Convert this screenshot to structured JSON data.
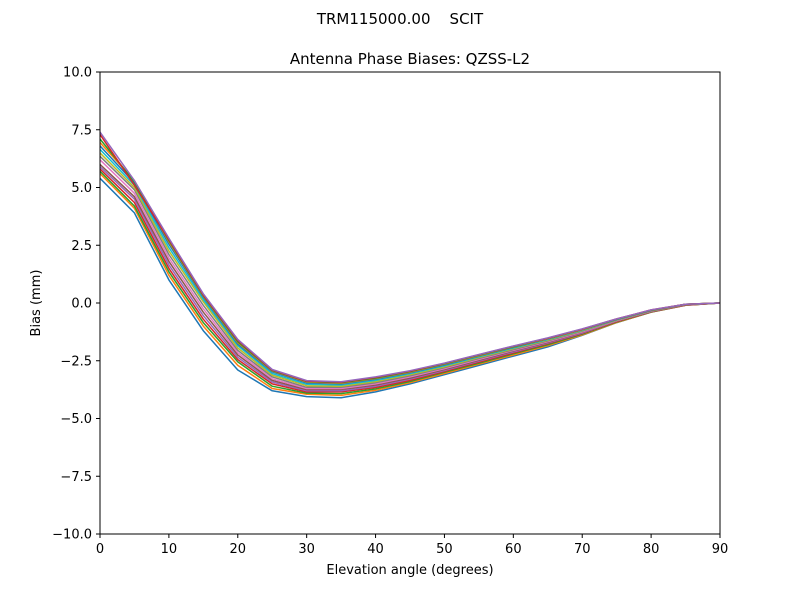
{
  "figure": {
    "suptitle": "TRM115000.00    SCIT"
  },
  "chart_data": {
    "type": "line",
    "title": "Antenna Phase Biases: QZSS-L2",
    "xlabel": "Elevation angle (degrees)",
    "ylabel": "Bias (mm)",
    "xlim": [
      0,
      90
    ],
    "ylim": [
      -10,
      10
    ],
    "xticks": [
      0,
      10,
      20,
      30,
      40,
      50,
      60,
      70,
      80,
      90
    ],
    "xtick_labels": [
      "0",
      "10",
      "20",
      "30",
      "40",
      "50",
      "60",
      "70",
      "80",
      "90"
    ],
    "yticks": [
      -10,
      -7.5,
      -5,
      -2.5,
      0,
      2.5,
      5,
      7.5,
      10
    ],
    "ytick_labels": [
      "−10.0",
      "−7.5",
      "−5.0",
      "−2.5",
      "0.0",
      "2.5",
      "5.0",
      "7.5",
      "10.0"
    ],
    "grid": false,
    "legend": "none",
    "colors": [
      "#1f77b4",
      "#ff7f0e",
      "#2ca02c",
      "#d62728",
      "#9467bd",
      "#8c564b",
      "#e377c2",
      "#7f7f7f",
      "#bcbd22",
      "#17becf"
    ],
    "x": [
      0,
      5,
      10,
      15,
      20,
      25,
      30,
      35,
      40,
      45,
      50,
      55,
      60,
      65,
      70,
      75,
      80,
      85,
      90
    ],
    "series": [
      {
        "values": [
          5.4,
          3.9,
          1.0,
          -1.2,
          -2.9,
          -3.8,
          -4.05,
          -4.1,
          -3.85,
          -3.5,
          -3.1,
          -2.7,
          -2.3,
          -1.9,
          -1.4,
          -0.85,
          -0.4,
          -0.1,
          0.0
        ]
      },
      {
        "values": [
          5.6,
          4.1,
          1.2,
          -1.0,
          -2.7,
          -3.7,
          -3.95,
          -4.0,
          -3.78,
          -3.45,
          -3.05,
          -2.65,
          -2.25,
          -1.85,
          -1.38,
          -0.84,
          -0.4,
          -0.1,
          0.0
        ]
      },
      {
        "values": [
          5.7,
          4.2,
          1.35,
          -0.85,
          -2.55,
          -3.6,
          -3.9,
          -3.92,
          -3.72,
          -3.4,
          -3.0,
          -2.6,
          -2.2,
          -1.8,
          -1.35,
          -0.82,
          -0.39,
          -0.09,
          0.0
        ]
      },
      {
        "values": [
          5.8,
          4.35,
          1.5,
          -0.7,
          -2.45,
          -3.5,
          -3.85,
          -3.85,
          -3.66,
          -3.35,
          -2.96,
          -2.56,
          -2.16,
          -1.76,
          -1.32,
          -0.8,
          -0.38,
          -0.09,
          0.0
        ]
      },
      {
        "values": [
          5.9,
          4.5,
          1.65,
          -0.55,
          -2.35,
          -3.42,
          -3.8,
          -3.8,
          -3.6,
          -3.3,
          -2.92,
          -2.52,
          -2.12,
          -1.73,
          -1.3,
          -0.78,
          -0.37,
          -0.08,
          0.0
        ]
      },
      {
        "values": [
          6.0,
          4.6,
          1.8,
          -0.4,
          -2.25,
          -3.35,
          -3.75,
          -3.74,
          -3.55,
          -3.25,
          -2.88,
          -2.48,
          -2.08,
          -1.7,
          -1.27,
          -0.77,
          -0.36,
          -0.08,
          0.0
        ]
      },
      {
        "values": [
          6.2,
          4.75,
          1.95,
          -0.25,
          -2.15,
          -3.28,
          -3.7,
          -3.7,
          -3.5,
          -3.2,
          -2.84,
          -2.44,
          -2.05,
          -1.67,
          -1.25,
          -0.76,
          -0.35,
          -0.07,
          0.0
        ]
      },
      {
        "values": [
          6.35,
          4.9,
          2.1,
          -0.1,
          -2.05,
          -3.2,
          -3.65,
          -3.65,
          -3.45,
          -3.15,
          -2.8,
          -2.4,
          -2.02,
          -1.64,
          -1.22,
          -0.74,
          -0.34,
          -0.07,
          0.0
        ]
      },
      {
        "values": [
          6.5,
          5.0,
          2.25,
          0.05,
          -1.95,
          -3.12,
          -3.58,
          -3.6,
          -3.4,
          -3.1,
          -2.76,
          -2.36,
          -1.98,
          -1.61,
          -1.2,
          -0.73,
          -0.33,
          -0.06,
          0.0
        ]
      },
      {
        "values": [
          6.65,
          5.1,
          2.4,
          0.15,
          -1.85,
          -3.05,
          -3.52,
          -3.55,
          -3.35,
          -3.06,
          -2.72,
          -2.33,
          -1.95,
          -1.58,
          -1.18,
          -0.72,
          -0.32,
          -0.06,
          0.0
        ]
      },
      {
        "values": [
          6.8,
          5.2,
          2.55,
          0.25,
          -1.78,
          -2.98,
          -3.46,
          -3.5,
          -3.3,
          -3.02,
          -2.68,
          -2.3,
          -1.92,
          -1.56,
          -1.16,
          -0.71,
          -0.32,
          -0.05,
          0.0
        ]
      },
      {
        "values": [
          6.95,
          5.3,
          2.65,
          0.3,
          -1.72,
          -2.94,
          -3.42,
          -3.47,
          -3.27,
          -2.99,
          -2.65,
          -2.28,
          -1.9,
          -1.54,
          -1.15,
          -0.7,
          -0.31,
          -0.05,
          0.0
        ]
      },
      {
        "values": [
          7.1,
          5.25,
          2.7,
          0.32,
          -1.68,
          -2.92,
          -3.4,
          -3.45,
          -3.25,
          -2.97,
          -2.63,
          -2.26,
          -1.89,
          -1.53,
          -1.14,
          -0.7,
          -0.31,
          -0.05,
          0.0
        ]
      },
      {
        "values": [
          7.3,
          5.1,
          2.75,
          0.35,
          -1.62,
          -2.9,
          -3.38,
          -3.43,
          -3.22,
          -2.95,
          -2.61,
          -2.24,
          -1.87,
          -1.52,
          -1.13,
          -0.69,
          -0.3,
          -0.05,
          0.0
        ]
      },
      {
        "values": [
          7.4,
          5.3,
          2.8,
          0.4,
          -1.58,
          -2.88,
          -3.36,
          -3.41,
          -3.2,
          -2.93,
          -2.6,
          -2.23,
          -1.86,
          -1.51,
          -1.12,
          -0.69,
          -0.3,
          -0.05,
          0.0
        ]
      }
    ]
  }
}
